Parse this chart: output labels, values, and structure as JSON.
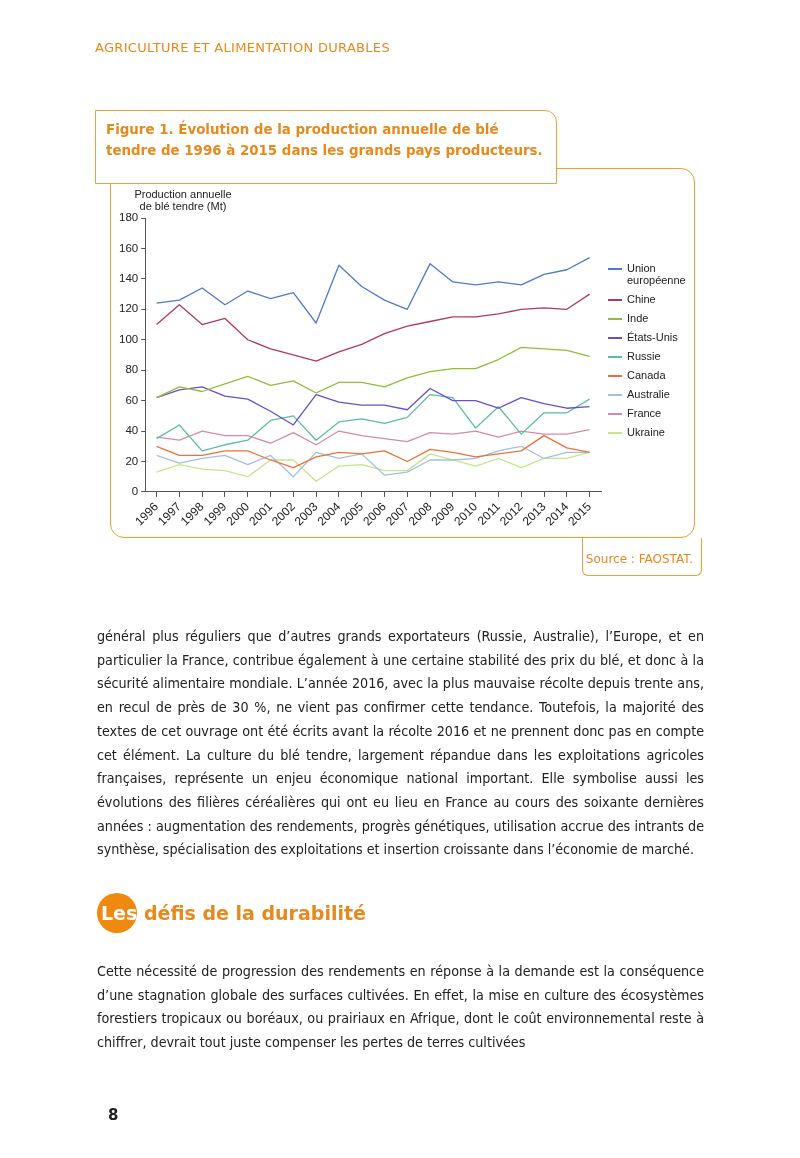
{
  "chart_data": {
    "type": "line",
    "title": "Figure 1. Évolution de la production annuelle de blé tendre de 1996 à 2015 dans les grands pays producteurs.",
    "ylabel": "Production annuelle de blé tendre (Mt)",
    "categories": [
      "1996",
      "1997",
      "1998",
      "1999",
      "2000",
      "2001",
      "2002",
      "2003",
      "2004",
      "2005",
      "2006",
      "2007",
      "2008",
      "2009",
      "2010",
      "2011",
      "2012",
      "2013",
      "2014",
      "2015"
    ],
    "ylim": [
      0,
      180
    ],
    "yticks": [
      0,
      20,
      40,
      60,
      80,
      100,
      120,
      140,
      160,
      180
    ],
    "grid": false,
    "legend": "right",
    "marker": "none",
    "line_style": "solid",
    "series": [
      {
        "name": "Union européenne",
        "color": "#4f7bc8",
        "values": [
          124,
          126,
          134,
          123,
          132,
          127,
          131,
          111,
          149,
          135,
          126,
          120,
          150,
          138,
          136,
          138,
          136,
          143,
          146,
          154
        ]
      },
      {
        "name": "Chine",
        "color": "#b03a5b",
        "values": [
          110,
          123,
          110,
          114,
          100,
          94,
          90,
          86,
          92,
          97,
          104,
          109,
          112,
          115,
          115,
          117,
          120,
          121,
          120,
          130
        ]
      },
      {
        "name": "Inde",
        "color": "#8fbf3a",
        "values": [
          62,
          69,
          66,
          71,
          76,
          70,
          73,
          65,
          72,
          72,
          69,
          75,
          79,
          81,
          81,
          87,
          95,
          94,
          93,
          89
        ]
      },
      {
        "name": "États-Unis",
        "color": "#6a4fc8",
        "values": [
          62,
          67,
          69,
          63,
          61,
          53,
          44,
          64,
          59,
          57,
          57,
          54,
          68,
          60,
          60,
          55,
          62,
          58,
          55,
          56
        ]
      },
      {
        "name": "Russie",
        "color": "#5bbfa0",
        "values": [
          35,
          44,
          27,
          31,
          34,
          47,
          50,
          34,
          46,
          48,
          45,
          49,
          64,
          62,
          42,
          56,
          38,
          52,
          52,
          61
        ]
      },
      {
        "name": "Canada",
        "color": "#e8743b",
        "values": [
          30,
          24,
          24,
          27,
          27,
          21,
          16,
          23,
          26,
          25,
          27,
          20,
          28,
          26,
          23,
          25,
          27,
          37,
          29,
          26
        ]
      },
      {
        "name": "Australie",
        "color": "#a5bfe0",
        "values": [
          24,
          19,
          22,
          24,
          18,
          24,
          10,
          26,
          22,
          25,
          11,
          13,
          21,
          21,
          22,
          27,
          30,
          22,
          26,
          26
        ]
      },
      {
        "name": "France",
        "color": "#d98aa8",
        "values": [
          36,
          34,
          40,
          37,
          37,
          32,
          39,
          31,
          40,
          37,
          35,
          33,
          39,
          38,
          40,
          36,
          40,
          38,
          38,
          41
        ]
      },
      {
        "name": "Ukraine",
        "color": "#c5e68a",
        "values": [
          13,
          18,
          15,
          14,
          10,
          21,
          21,
          7,
          17,
          18,
          14,
          14,
          25,
          21,
          17,
          22,
          16,
          22,
          22,
          26
        ]
      }
    ],
    "annotations": [
      "AGRICULTURE ET ALIMENTATION DURABLES",
      "Source : FAOSTAT.",
      "général plus réguliers que d’autres grands exportateurs (Russie, Australie), l’Europe, et en particulier la France, contribue également à une certaine stabilité des prix du blé, et donc à la sécurité alimentaire mondiale. L’année 2016, avec la plus mauvaise récolte depuis trente ans, en recul de près de 30 %, ne vient pas confirmer cette tendance. Toutefois, la majorité des textes de cet ouvrage ont été écrits avant la récolte 2016 et ne prennent donc pas en compte cet élément. La culture du blé tendre, largement répandue dans les exploitations agricoles françaises, représente un enjeu économique national important. Elle symbolise aussi les évolutions des filières céréalières qui ont eu lieu en France au cours des soixante dernières années : augmentation des rendements, progrès génétiques, utilisation accrue des intrants de synthèse, spécialisation des exploitations et insertion croissante dans l’économie de marché.",
      "Les défis de la durabilité",
      "Cette nécessité de progression des rendements en réponse à la demande est la conséquence d’une stagnation globale des surfaces cultivées. En effet, la mise en culture des écosystèmes forestiers tropicaux ou boréaux, ou prairiaux en Afrique, dont le coût environnemental reste à chiffrer, devrait tout juste compenser les pertes de terres cultivées",
      "8"
    ]
  }
}
